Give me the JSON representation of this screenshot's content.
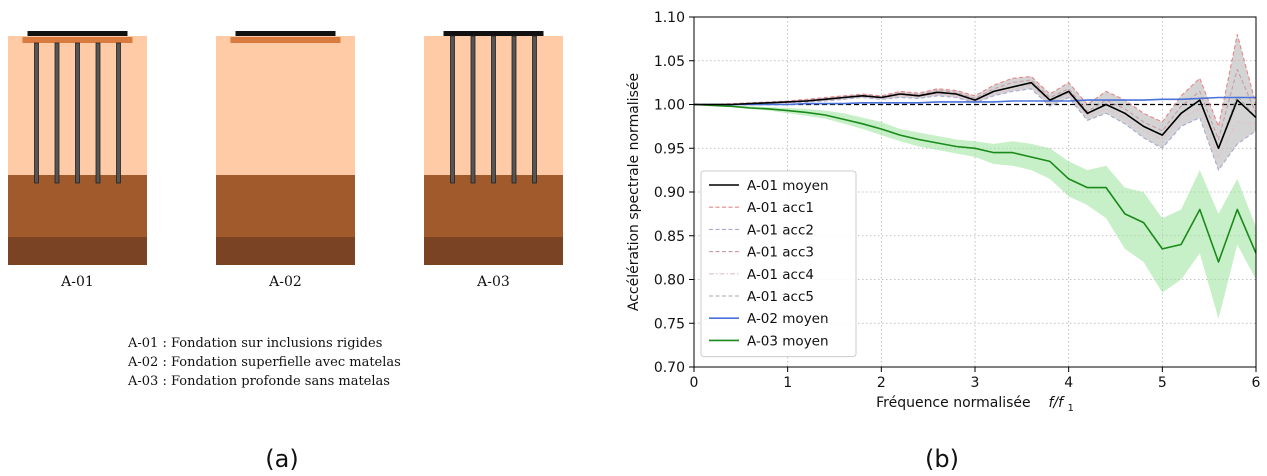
{
  "panel_a": {
    "caption": "(a)",
    "colors": {
      "soil_top": "#ffcba6",
      "soil_mid": "#a05a2c",
      "soil_bottom": "#7a4424",
      "mattress": "#d97a3f",
      "slab": "#111111",
      "pile": "#555555"
    },
    "models": [
      {
        "id": "A-01",
        "label": "A-01",
        "piles": 5,
        "mattress": true
      },
      {
        "id": "A-02",
        "label": "A-02",
        "piles": 0,
        "mattress": true
      },
      {
        "id": "A-03",
        "label": "A-03",
        "piles": 5,
        "mattress": false
      }
    ],
    "legend": [
      "A-01 : Fondation sur inclusions rigides",
      "A-02 : Fondation superfielle avec matelas",
      "A-03 : Fondation profonde sans matelas"
    ]
  },
  "panel_b": {
    "caption": "(b)"
  },
  "chart_data": {
    "type": "line",
    "title": "",
    "xlabel_main": "Fréquence normalisée",
    "xlabel_var": "f/f",
    "xlabel_sub": "1",
    "ylabel": "Accélération spectrale normalisée",
    "xlim": [
      0,
      6
    ],
    "ylim": [
      0.7,
      1.1
    ],
    "xticks": [
      0,
      1,
      2,
      3,
      4,
      5,
      6
    ],
    "xtick_labels": [
      "0",
      "1",
      "2",
      "3",
      "4",
      "5",
      "6"
    ],
    "yticks": [
      0.7,
      0.75,
      0.8,
      0.85,
      0.9,
      0.95,
      1.0,
      1.05,
      1.1
    ],
    "ytick_labels": [
      "0.70",
      "0.75",
      "0.80",
      "0.85",
      "0.90",
      "0.95",
      "1.00",
      "1.05",
      "1.10"
    ],
    "grid": true,
    "legend_position": "lower-left",
    "reference_line": 1.0,
    "x": [
      0,
      0.2,
      0.4,
      0.6,
      0.8,
      1.0,
      1.2,
      1.4,
      1.6,
      1.8,
      2.0,
      2.2,
      2.4,
      2.6,
      2.8,
      3.0,
      3.2,
      3.4,
      3.6,
      3.8,
      4.0,
      4.2,
      4.4,
      4.6,
      4.8,
      5.0,
      5.2,
      5.4,
      5.6,
      5.8,
      6.0
    ],
    "series": [
      {
        "name": "A-01 moyen",
        "color": "#000000",
        "style": "solid",
        "values": [
          1.0,
          1.0,
          1.0,
          1.001,
          1.002,
          1.003,
          1.004,
          1.006,
          1.008,
          1.01,
          1.008,
          1.012,
          1.01,
          1.014,
          1.012,
          1.005,
          1.015,
          1.02,
          1.025,
          1.005,
          1.015,
          0.99,
          1.0,
          0.99,
          0.975,
          0.965,
          0.99,
          1.005,
          0.95,
          1.005,
          0.985
        ]
      },
      {
        "name": "A-01 acc1",
        "color": "#e8858a",
        "style": "dashed",
        "values": [
          1.0,
          1.0,
          1.001,
          1.002,
          1.003,
          1.004,
          1.006,
          1.008,
          1.01,
          1.012,
          1.01,
          1.015,
          1.013,
          1.018,
          1.016,
          1.01,
          1.022,
          1.03,
          1.032,
          1.012,
          1.025,
          1.0,
          1.015,
          1.005,
          0.99,
          0.98,
          1.01,
          1.03,
          0.975,
          1.08,
          1.0
        ]
      },
      {
        "name": "A-01 acc2",
        "color": "#a9a9cf",
        "style": "dashed",
        "values": [
          1.0,
          1.0,
          1.0,
          1.0,
          1.001,
          1.002,
          1.003,
          1.004,
          1.006,
          1.008,
          1.006,
          1.008,
          1.007,
          1.01,
          1.008,
          1.002,
          1.01,
          1.015,
          1.018,
          0.998,
          1.008,
          0.982,
          0.99,
          0.978,
          0.962,
          0.95,
          0.975,
          0.985,
          0.925,
          0.955,
          0.97
        ]
      },
      {
        "name": "A-01 acc3",
        "color": "#c99aa8",
        "style": "dashed",
        "values": [
          1.0,
          1.0,
          1.0,
          1.001,
          1.002,
          1.003,
          1.005,
          1.007,
          1.009,
          1.011,
          1.009,
          1.013,
          1.011,
          1.016,
          1.014,
          1.007,
          1.018,
          1.025,
          1.028,
          1.008,
          1.018,
          0.992,
          1.005,
          0.995,
          0.98,
          0.97,
          0.998,
          1.015,
          0.96,
          1.04,
          0.99
        ]
      },
      {
        "name": "A-01 acc4",
        "color": "#e0c2d0",
        "style": "dashdot",
        "values": [
          1.0,
          1.0,
          1.0,
          1.0,
          1.001,
          1.002,
          1.004,
          1.005,
          1.007,
          1.009,
          1.007,
          1.01,
          1.009,
          1.012,
          1.01,
          1.003,
          1.012,
          1.017,
          1.022,
          1.002,
          1.012,
          0.987,
          0.995,
          0.985,
          0.97,
          0.96,
          0.985,
          0.995,
          0.94,
          0.98,
          0.978
        ]
      },
      {
        "name": "A-01 acc5",
        "color": "#a8a8a8",
        "style": "dashed",
        "values": [
          1.0,
          1.0,
          1.0,
          1.001,
          1.002,
          1.003,
          1.004,
          1.006,
          1.008,
          1.01,
          1.008,
          1.012,
          1.01,
          1.014,
          1.012,
          1.005,
          1.015,
          1.02,
          1.024,
          1.004,
          1.014,
          0.989,
          1.0,
          0.99,
          0.975,
          0.965,
          0.99,
          1.005,
          0.95,
          1.01,
          0.985
        ]
      },
      {
        "name": "A-02 moyen",
        "color": "#4a72d9",
        "style": "solid",
        "values": [
          1.0,
          1.0,
          1.0,
          1.0,
          1.0,
          1.0,
          1.001,
          1.001,
          1.001,
          1.002,
          1.002,
          1.002,
          1.002,
          1.003,
          1.003,
          1.003,
          1.003,
          1.004,
          1.004,
          1.004,
          1.004,
          1.005,
          1.005,
          1.005,
          1.005,
          1.006,
          1.006,
          1.007,
          1.008,
          1.008,
          1.008
        ]
      },
      {
        "name": "A-03 moyen",
        "color": "#1a8a1a",
        "style": "solid",
        "values": [
          1.0,
          0.999,
          0.998,
          0.996,
          0.995,
          0.993,
          0.991,
          0.988,
          0.983,
          0.978,
          0.972,
          0.965,
          0.96,
          0.956,
          0.952,
          0.95,
          0.945,
          0.945,
          0.94,
          0.935,
          0.915,
          0.905,
          0.905,
          0.875,
          0.865,
          0.835,
          0.84,
          0.88,
          0.82,
          0.88,
          0.83
        ]
      }
    ],
    "bands": [
      {
        "of": "A-01",
        "color": "#b7b7b7",
        "opacity": 0.6,
        "lower": [
          1.0,
          1.0,
          1.0,
          1.0,
          1.001,
          1.002,
          1.003,
          1.004,
          1.006,
          1.008,
          1.006,
          1.008,
          1.007,
          1.01,
          1.008,
          1.002,
          1.01,
          1.015,
          1.018,
          0.998,
          1.008,
          0.982,
          0.99,
          0.978,
          0.962,
          0.95,
          0.975,
          0.985,
          0.925,
          0.955,
          0.97
        ],
        "upper": [
          1.0,
          1.0,
          1.001,
          1.002,
          1.003,
          1.004,
          1.006,
          1.008,
          1.01,
          1.012,
          1.01,
          1.015,
          1.013,
          1.018,
          1.016,
          1.01,
          1.022,
          1.03,
          1.032,
          1.012,
          1.025,
          1.0,
          1.015,
          1.005,
          0.99,
          0.98,
          1.01,
          1.03,
          0.975,
          1.08,
          1.0
        ]
      },
      {
        "of": "A-03",
        "color": "#9be39b",
        "opacity": 0.55,
        "lower": [
          1.0,
          0.999,
          0.997,
          0.995,
          0.993,
          0.99,
          0.987,
          0.984,
          0.978,
          0.972,
          0.965,
          0.958,
          0.952,
          0.948,
          0.944,
          0.94,
          0.932,
          0.93,
          0.925,
          0.915,
          0.895,
          0.885,
          0.87,
          0.835,
          0.82,
          0.785,
          0.8,
          0.83,
          0.755,
          0.84,
          0.8
        ],
        "upper": [
          1.0,
          1.0,
          0.999,
          0.998,
          0.997,
          0.996,
          0.995,
          0.993,
          0.99,
          0.985,
          0.98,
          0.972,
          0.968,
          0.964,
          0.96,
          0.958,
          0.955,
          0.958,
          0.955,
          0.95,
          0.935,
          0.925,
          0.93,
          0.905,
          0.9,
          0.87,
          0.88,
          0.925,
          0.875,
          0.915,
          0.86
        ]
      }
    ]
  }
}
